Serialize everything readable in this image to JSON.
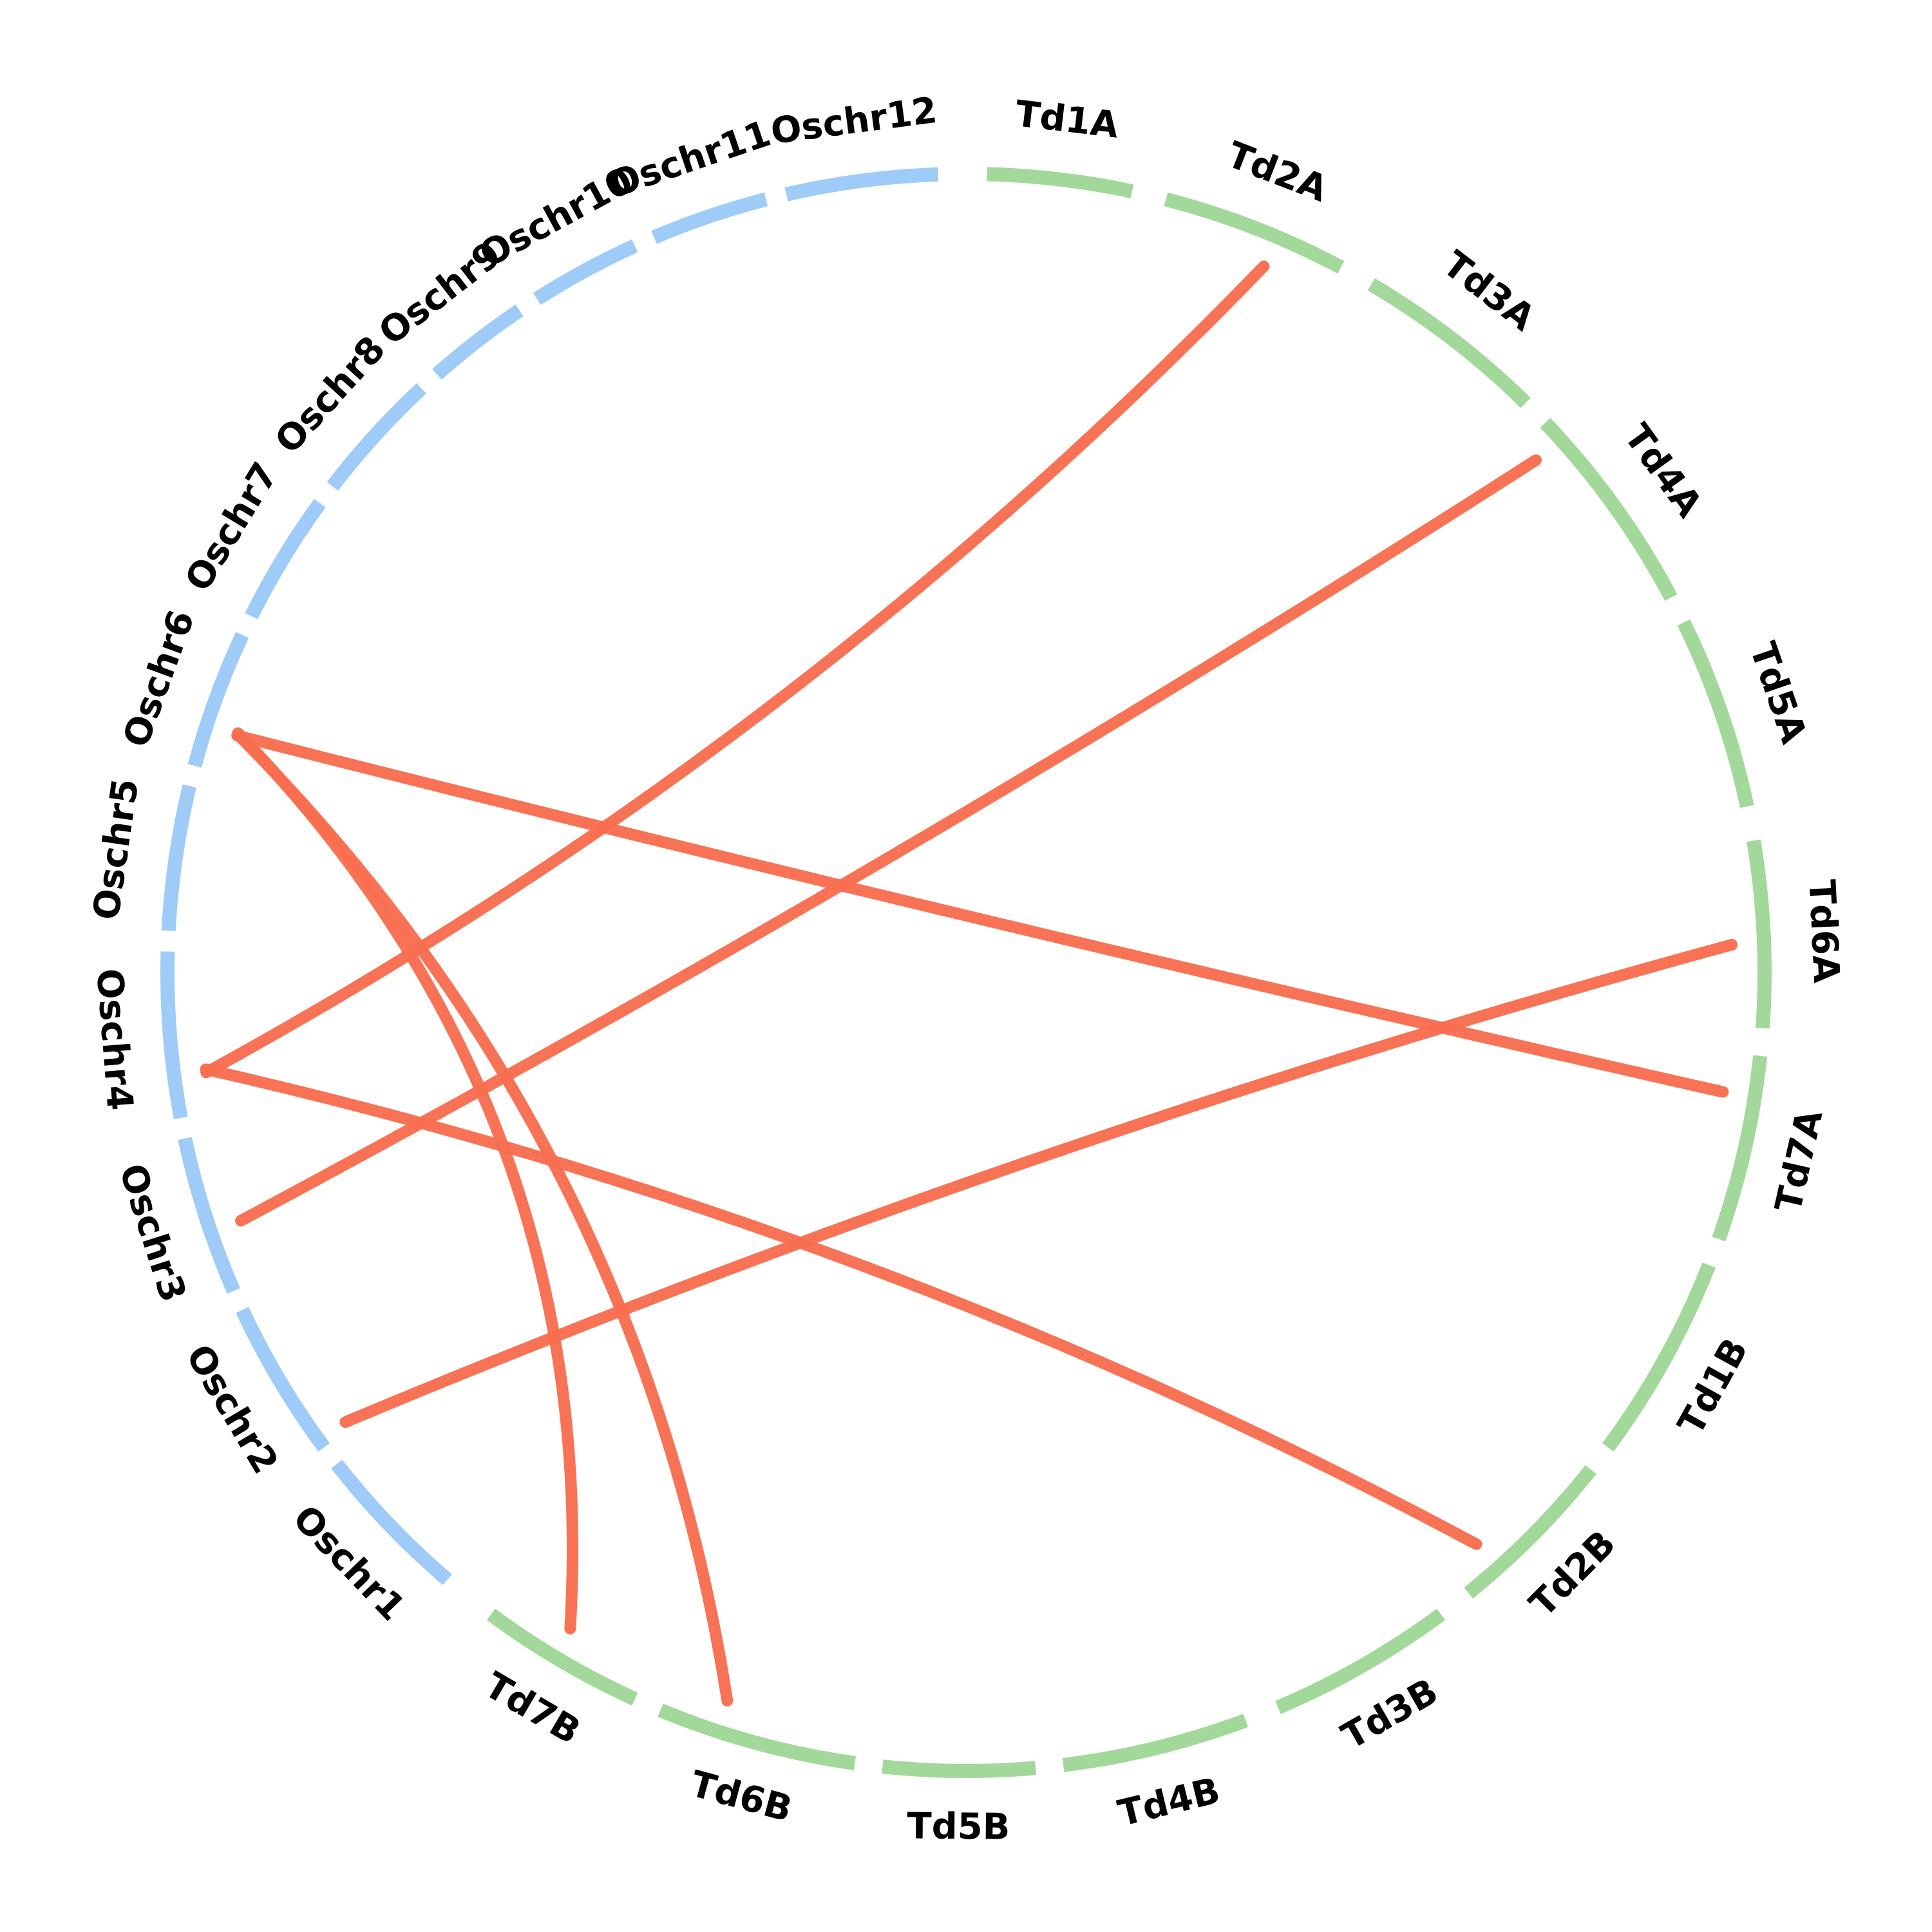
{
  "colors": {
    "oryza": "#9ecbf7",
    "triticum": "#a3d89b",
    "link": "#f86d4f"
  },
  "chromosomes": [
    {
      "label": "Oschr1",
      "group": "oryza"
    },
    {
      "label": "Oschr2",
      "group": "oryza"
    },
    {
      "label": "Oschr3",
      "group": "oryza"
    },
    {
      "label": "Oschr4",
      "group": "oryza"
    },
    {
      "label": "Oschr5",
      "group": "oryza"
    },
    {
      "label": "Oschr6",
      "group": "oryza"
    },
    {
      "label": "Oschr7",
      "group": "oryza"
    },
    {
      "label": "Oschr8",
      "group": "oryza"
    },
    {
      "label": "Oschr9",
      "group": "oryza"
    },
    {
      "label": "Oschr10",
      "group": "oryza"
    },
    {
      "label": "Oschr11",
      "group": "oryza"
    },
    {
      "label": "Oschr12",
      "group": "oryza"
    },
    {
      "label": "Td1A",
      "group": "triticum"
    },
    {
      "label": "Td2A",
      "group": "triticum"
    },
    {
      "label": "Td3A",
      "group": "triticum"
    },
    {
      "label": "Td4A",
      "group": "triticum"
    },
    {
      "label": "Td5A",
      "group": "triticum"
    },
    {
      "label": "Td6A",
      "group": "triticum"
    },
    {
      "label": "Td7A",
      "group": "triticum"
    },
    {
      "label": "Td1B",
      "group": "triticum"
    },
    {
      "label": "Td2B",
      "group": "triticum"
    },
    {
      "label": "Td3B",
      "group": "triticum"
    },
    {
      "label": "Td4B",
      "group": "triticum"
    },
    {
      "label": "Td5B",
      "group": "triticum"
    },
    {
      "label": "Td6B",
      "group": "triticum"
    },
    {
      "label": "Td7B",
      "group": "triticum"
    }
  ],
  "links": [
    {
      "from": "Oschr4",
      "to": "Td2A"
    },
    {
      "from": "Oschr4",
      "to": "Td2B"
    },
    {
      "from": "Oschr3",
      "to": "Td4A"
    },
    {
      "from": "Oschr2",
      "to": "Td6A"
    },
    {
      "from": "Oschr6",
      "to": "Td7A"
    },
    {
      "from": "Oschr6",
      "to": "Td7B"
    },
    {
      "from": "Oschr6",
      "to": "Td6B"
    }
  ]
}
